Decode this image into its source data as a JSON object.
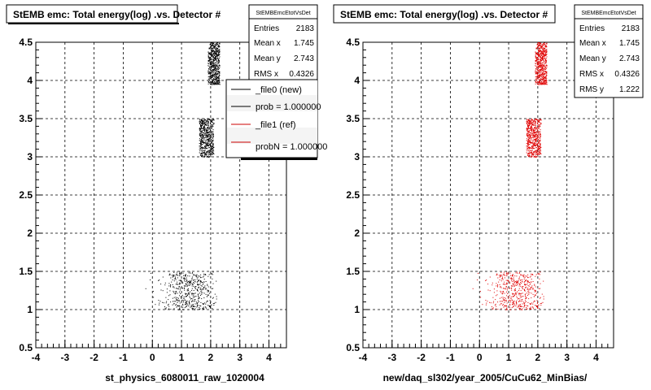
{
  "panels": [
    {
      "title": "StEMB emc: Total energy(log) .vs. Detector #",
      "xlabel": "st_physics_6080011_raw_1020004",
      "stats": {
        "name": "StEMBEmcEtotVsDet",
        "rows": [
          {
            "label": "Entries",
            "value": "2183"
          },
          {
            "label": "Mean x",
            "value": "1.745"
          },
          {
            "label": "Mean y",
            "value": "2.743"
          },
          {
            "label": "RMS x",
            "value": "0.4326"
          }
        ]
      },
      "legend": {
        "entries": [
          {
            "label": "_file0 (new)",
            "color": "#000000"
          },
          {
            "label": "prob = 1.000000",
            "color": "#000000"
          },
          {
            "label": "_file1 (ref)",
            "color": "#cc0000"
          },
          {
            "label": "probN = 1.000000",
            "color": "#cc0000"
          }
        ]
      },
      "point_color": "#000000"
    },
    {
      "title": "StEMB emc: Total energy(log) .vs. Detector #",
      "xlabel": "new/daq_sl302/year_2005/CuCu62_MinBias/",
      "stats": {
        "name": "StEMBEmcEtotVsDet",
        "rows": [
          {
            "label": "Entries",
            "value": "2183"
          },
          {
            "label": "Mean x",
            "value": "1.745"
          },
          {
            "label": "Mean y",
            "value": "2.743"
          },
          {
            "label": "RMS x",
            "value": "0.4326"
          },
          {
            "label": "RMS y",
            "value": "1.222"
          }
        ]
      },
      "point_color": "#e00000"
    }
  ],
  "chart_data": [
    {
      "type": "scatter",
      "title": "StEMB emc: Total energy(log) .vs. Detector #",
      "xlabel": "st_physics_6080011_raw_1020004",
      "ylabel": "",
      "xlim": [
        -4,
        4.6
      ],
      "ylim": [
        0.5,
        4.5
      ],
      "xticks": [
        "-4",
        "-3",
        "-2",
        "-1",
        "0",
        "1",
        "2",
        "3",
        "4"
      ],
      "yticks": [
        "0.5",
        "1",
        "1.5",
        "2",
        "2.5",
        "3",
        "3.5",
        "4",
        "4.5"
      ],
      "grid": true,
      "point_color": "#000000",
      "clusters": [
        {
          "x_range": [
            1.9,
            2.3
          ],
          "y_range": [
            3.95,
            4.5
          ],
          "count": 650,
          "distribution": "uniform"
        },
        {
          "x_range": [
            1.6,
            2.1
          ],
          "y_range": [
            3.0,
            3.5
          ],
          "count": 600,
          "distribution": "uniform"
        },
        {
          "x_center": 1.25,
          "x_spread": 0.5,
          "x_range": [
            -0.6,
            2.2
          ],
          "y_range": [
            1.0,
            1.5
          ],
          "count": 520,
          "distribution": "gaussian-x"
        }
      ],
      "entries": 2183,
      "mean_x": 1.745,
      "mean_y": 2.743,
      "rms_x": 0.4326
    },
    {
      "type": "scatter",
      "title": "StEMB emc: Total energy(log) .vs. Detector #",
      "xlabel": "new/daq_sl302/year_2005/CuCu62_MinBias/",
      "ylabel": "",
      "xlim": [
        -4,
        4.6
      ],
      "ylim": [
        0.5,
        4.5
      ],
      "xticks": [
        "-4",
        "-3",
        "-2",
        "-1",
        "0",
        "1",
        "2",
        "3",
        "4"
      ],
      "yticks": [
        "0.5",
        "1",
        "1.5",
        "2",
        "2.5",
        "3",
        "3.5",
        "4",
        "4.5"
      ],
      "grid": true,
      "point_color": "#e00000",
      "clusters": [
        {
          "x_range": [
            1.9,
            2.3
          ],
          "y_range": [
            3.95,
            4.5
          ],
          "count": 650,
          "distribution": "uniform"
        },
        {
          "x_range": [
            1.6,
            2.1
          ],
          "y_range": [
            3.0,
            3.5
          ],
          "count": 600,
          "distribution": "uniform"
        },
        {
          "x_center": 1.25,
          "x_spread": 0.5,
          "x_range": [
            -0.6,
            2.2
          ],
          "y_range": [
            1.0,
            1.5
          ],
          "count": 520,
          "distribution": "gaussian-x"
        }
      ],
      "entries": 2183,
      "mean_x": 1.745,
      "mean_y": 2.743,
      "rms_x": 0.4326,
      "rms_y": 1.222
    }
  ]
}
